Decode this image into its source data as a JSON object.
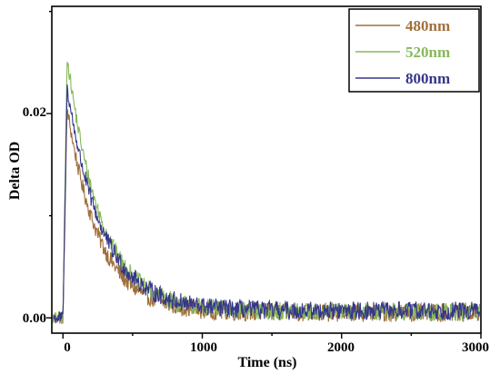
{
  "chart_data": {
    "type": "line",
    "title": "",
    "xlabel": "Time (ns)",
    "ylabel": "Delta OD",
    "xlim": [
      -80,
      3000
    ],
    "ylim": [
      -0.0015,
      0.0305
    ],
    "x_ticks": [
      0,
      1000,
      2000,
      3000
    ],
    "x_tick_labels": [
      "0",
      "1000",
      "2000",
      "3000"
    ],
    "y_ticks": [
      0.0,
      0.02
    ],
    "y_tick_labels": [
      "0.00",
      "0.02"
    ],
    "grid": false,
    "legend_position": "top-right",
    "series": [
      {
        "name": "480nm",
        "color": "#a0703c",
        "onset_ns": 0,
        "peak_time_ns": 30,
        "peak": 0.0205,
        "decay_ns": 230,
        "tail_level": 0.0005,
        "noise": 0.0009
      },
      {
        "name": "520nm",
        "color": "#86b85c",
        "onset_ns": 0,
        "peak_time_ns": 30,
        "peak": 0.0256,
        "decay_ns": 240,
        "tail_level": 0.0006,
        "noise": 0.0009
      },
      {
        "name": "800nm",
        "color": "#36368a",
        "onset_ns": 0,
        "peak_time_ns": 30,
        "peak": 0.0225,
        "decay_ns": 250,
        "tail_level": 0.0007,
        "noise": 0.0009
      }
    ]
  }
}
